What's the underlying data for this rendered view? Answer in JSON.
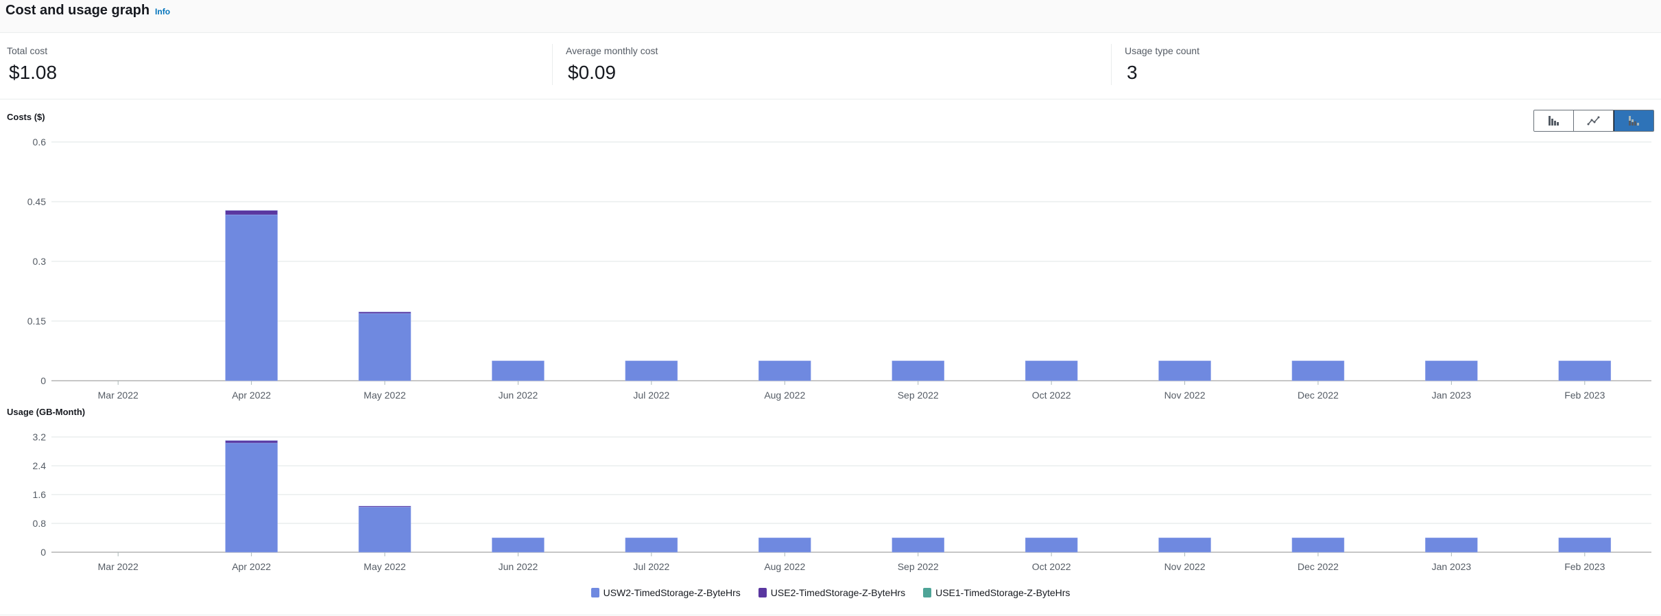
{
  "header": {
    "title": "Cost and usage graph",
    "info_link": "Info"
  },
  "metrics": [
    {
      "label": "Total cost",
      "value": "$1.08"
    },
    {
      "label": "Average monthly cost",
      "value": "$0.09"
    },
    {
      "label": "Usage type count",
      "value": "3"
    }
  ],
  "chart_type_toggle": {
    "options": [
      "bar-chart-icon",
      "line-chart-icon",
      "stacked-bar-chart-icon"
    ],
    "selected": "stacked-bar-chart-icon",
    "selected_color": "#2e73b8"
  },
  "legend": [
    {
      "name": "USW2-TimedStorage-Z-ByteHrs",
      "color": "#6f89e0"
    },
    {
      "name": "USE2-TimedStorage-Z-ByteHrs",
      "color": "#5a37a0"
    },
    {
      "name": "USE1-TimedStorage-Z-ByteHrs",
      "color": "#4ea497"
    }
  ],
  "chart_data": [
    {
      "type": "bar",
      "stacked": true,
      "ylabel": "Costs ($)",
      "ylim": [
        0,
        0.6
      ],
      "yticks": [
        "0",
        "0.15",
        "0.3",
        "0.45",
        "0.6"
      ],
      "grid": true,
      "categories": [
        "Mar 2022",
        "Apr 2022",
        "May 2022",
        "Jun 2022",
        "Jul 2022",
        "Aug 2022",
        "Sep 2022",
        "Oct 2022",
        "Nov 2022",
        "Dec 2022",
        "Jan 2023",
        "Feb 2023"
      ],
      "series": [
        {
          "name": "USW2-TimedStorage-Z-ByteHrs",
          "values": [
            0,
            0.417,
            0.169,
            0.05,
            0.05,
            0.05,
            0.05,
            0.05,
            0.05,
            0.05,
            0.05,
            0.05
          ]
        },
        {
          "name": "USE2-TimedStorage-Z-ByteHrs",
          "values": [
            0,
            0.011,
            0.004,
            0,
            0,
            0,
            0,
            0,
            0,
            0,
            0,
            0
          ]
        },
        {
          "name": "USE1-TimedStorage-Z-ByteHrs",
          "values": [
            0,
            0,
            0,
            0,
            0,
            0,
            0,
            0,
            0,
            0,
            0,
            0
          ]
        }
      ]
    },
    {
      "type": "bar",
      "stacked": true,
      "ylabel": "Usage (GB-Month)",
      "ylim": [
        0,
        3.2
      ],
      "yticks": [
        "0",
        "0.8",
        "1.6",
        "2.4",
        "3.2"
      ],
      "grid": true,
      "categories": [
        "Mar 2022",
        "Apr 2022",
        "May 2022",
        "Jun 2022",
        "Jul 2022",
        "Aug 2022",
        "Sep 2022",
        "Oct 2022",
        "Nov 2022",
        "Dec 2022",
        "Jan 2023",
        "Feb 2023"
      ],
      "series": [
        {
          "name": "USW2-TimedStorage-Z-ByteHrs",
          "values": [
            0,
            3.03,
            1.25,
            0.4,
            0.4,
            0.4,
            0.4,
            0.4,
            0.4,
            0.4,
            0.4,
            0.4
          ]
        },
        {
          "name": "USE2-TimedStorage-Z-ByteHrs",
          "values": [
            0,
            0.07,
            0.03,
            0,
            0,
            0,
            0,
            0,
            0,
            0,
            0,
            0
          ]
        },
        {
          "name": "USE1-TimedStorage-Z-ByteHrs",
          "values": [
            0,
            0,
            0,
            0,
            0,
            0,
            0,
            0,
            0,
            0,
            0,
            0
          ]
        }
      ]
    }
  ]
}
